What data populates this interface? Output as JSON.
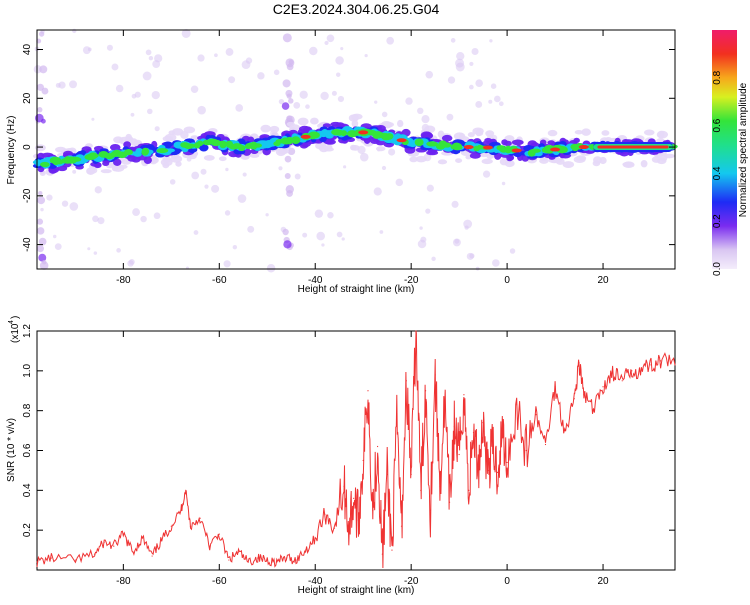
{
  "title": "C2E3.2024.304.06.25.G04",
  "chart_data": [
    {
      "type": "heatmap",
      "xlabel": "Height of straight line (km)",
      "ylabel": "Frequency (Hz)",
      "xlim": [
        -98,
        35
      ],
      "ylim": [
        -50,
        48
      ],
      "xticks": [
        -80,
        -60,
        -40,
        -20,
        0,
        20
      ],
      "yticks": [
        -40,
        -20,
        0,
        20,
        40
      ],
      "ridge": {
        "x": [
          -98,
          -90,
          -82,
          -75,
          -68,
          -62,
          -56,
          -50,
          -45,
          -40,
          -35,
          -30,
          -25,
          -20,
          -15,
          -10,
          -5,
          0,
          5,
          10,
          15,
          20,
          25,
          30,
          35
        ],
        "y": [
          -7,
          -5,
          -3,
          -2,
          0,
          2,
          0,
          1,
          3,
          5,
          6,
          6,
          4,
          2,
          1,
          0,
          0,
          -1,
          -2,
          -1,
          0,
          0,
          0,
          0,
          0
        ]
      },
      "colorbar": {
        "label": "Normalized spectral amplitude",
        "range": [
          0,
          1
        ],
        "ticks": [
          0.0,
          0.2,
          0.4,
          0.6,
          0.8
        ]
      },
      "grid": false
    },
    {
      "type": "line",
      "xlabel": "Height of straight line (km)",
      "ylabel": "SNR (10 * v/v)",
      "yscale_label": "(x10",
      "yscale_exp": "4",
      "xlim": [
        -98,
        35
      ],
      "ylim": [
        0,
        1.2
      ],
      "xticks": [
        -80,
        -60,
        -40,
        -20,
        0,
        20
      ],
      "yticks": [
        0.2,
        0.4,
        0.6,
        0.8,
        1.0,
        1.2
      ],
      "series": [
        {
          "color": "#ef3333",
          "x": [
            -98,
            -95,
            -90,
            -86,
            -84,
            -82,
            -80,
            -78,
            -76,
            -74,
            -72,
            -70,
            -68,
            -67,
            -66,
            -64,
            -62,
            -60,
            -58,
            -56,
            -54,
            -52,
            -50,
            -48,
            -46,
            -44,
            -42,
            -40,
            -38,
            -36,
            -34,
            -33,
            -32,
            -31,
            -30,
            -29,
            -28,
            -27,
            -26,
            -25,
            -24,
            -23,
            -22,
            -21,
            -20,
            -19,
            -18,
            -17,
            -16,
            -15,
            -14,
            -13,
            -12,
            -11,
            -10,
            -9,
            -8,
            -7,
            -6,
            -5,
            -4,
            -3,
            -2,
            -1,
            0,
            2,
            4,
            6,
            8,
            10,
            12,
            14,
            15,
            16,
            18,
            20,
            22,
            24,
            26,
            28,
            30,
            32,
            35
          ],
          "values": [
            0.04,
            0.06,
            0.05,
            0.08,
            0.14,
            0.12,
            0.18,
            0.09,
            0.16,
            0.07,
            0.15,
            0.22,
            0.3,
            0.4,
            0.22,
            0.26,
            0.12,
            0.18,
            0.05,
            0.09,
            0.04,
            0.06,
            0.05,
            0.04,
            0.06,
            0.05,
            0.1,
            0.16,
            0.28,
            0.21,
            0.42,
            0.22,
            0.36,
            0.25,
            0.55,
            0.9,
            0.3,
            0.62,
            0.08,
            0.48,
            0.1,
            0.74,
            0.22,
            0.95,
            0.48,
            1.2,
            0.4,
            0.9,
            0.3,
            0.98,
            0.42,
            0.85,
            0.34,
            0.72,
            0.58,
            0.88,
            0.4,
            0.69,
            0.52,
            0.74,
            0.5,
            0.62,
            0.49,
            0.7,
            0.54,
            0.83,
            0.6,
            0.78,
            0.63,
            0.92,
            0.7,
            0.86,
            1.04,
            0.88,
            0.8,
            0.92,
            0.99,
            0.95,
            1.0,
            1.01,
            1.03,
            1.05,
            1.03
          ]
        }
      ],
      "grid": false
    }
  ]
}
